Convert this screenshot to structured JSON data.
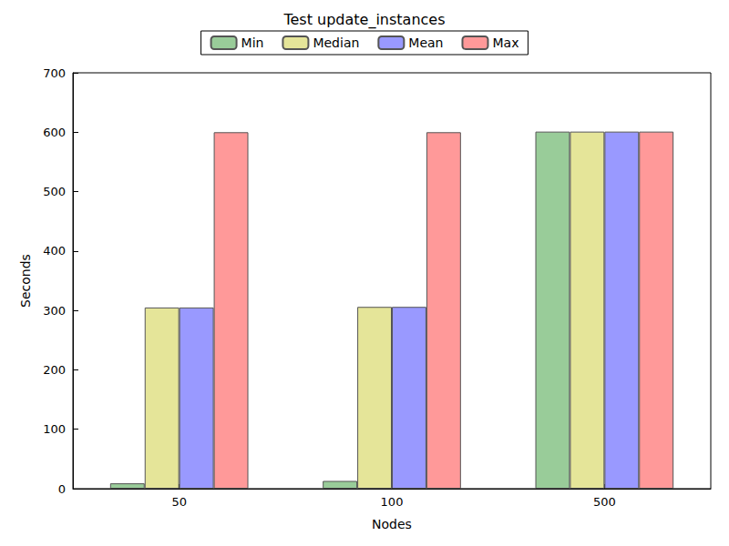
{
  "chart_data": {
    "type": "bar",
    "title": "Test update_instances",
    "x_label": "Nodes",
    "y_label": "Seconds",
    "categories": [
      "50",
      "100",
      "500"
    ],
    "series": [
      {
        "name": "Min",
        "color": "#99cc99",
        "values": [
          9,
          13,
          601
        ]
      },
      {
        "name": "Median",
        "color": "#e5e599",
        "values": [
          305,
          306,
          601
        ]
      },
      {
        "name": "Mean",
        "color": "#9999ff",
        "values": [
          305,
          306,
          601
        ]
      },
      {
        "name": "Max",
        "color": "#ff9999",
        "values": [
          600,
          600,
          601
        ]
      }
    ],
    "ylim": [
      0,
      700
    ],
    "yticks": [
      0,
      100,
      200,
      300,
      400,
      500,
      600,
      700
    ],
    "grid": false,
    "legend": "top"
  }
}
